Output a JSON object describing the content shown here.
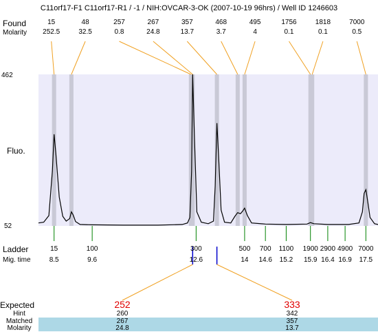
{
  "header": {
    "title": "C11orf17-F1  C11orf17-R1 / -1 / NIH:OVCAR-3-OK (2007-10-19 96hrs) / Well ID 1246603"
  },
  "labels": {
    "found": "Found",
    "molarity": "Molarity",
    "fluo": "Fluo.",
    "ladder": "Ladder",
    "mig_time": "Mig. time",
    "expected": "Expected",
    "hint": "Hint",
    "matched": "Matched",
    "molarity_bottom": "Molarity",
    "ymax": "462",
    "ymin": "52"
  },
  "chart_data": {
    "type": "line",
    "title": "C11orf17-F1  C11orf17-R1 / -1 / NIH:OVCAR-3-OK (2007-10-19 96hrs) / Well ID 1246603",
    "ylabel": "Fluo.",
    "ylim": [
      52,
      462
    ],
    "found_peaks": [
      {
        "size": "15",
        "molarity": "252.5",
        "time": 8.5
      },
      {
        "size": "48",
        "molarity": "32.5",
        "time": 9.0
      },
      {
        "size": "257",
        "molarity": "0.8",
        "time": 12.45
      },
      {
        "size": "267",
        "molarity": "24.8",
        "time": 12.5
      },
      {
        "size": "357",
        "molarity": "13.7",
        "time": 13.2
      },
      {
        "size": "468",
        "molarity": "3.7",
        "time": 13.8
      },
      {
        "size": "495",
        "molarity": "4",
        "time": 14.0
      },
      {
        "size": "1756",
        "molarity": "0.1",
        "time": 15.9
      },
      {
        "size": "1818",
        "molarity": "0.1",
        "time": 15.95
      },
      {
        "size": "7000",
        "molarity": "0.5",
        "time": 17.5
      }
    ],
    "ladder": [
      {
        "size": "15",
        "time": "8.5"
      },
      {
        "size": "100",
        "time": "9.6"
      },
      {
        "size": "300",
        "time": "12.6"
      },
      {
        "size": "500",
        "time": "14"
      },
      {
        "size": "700",
        "time": "14.6"
      },
      {
        "size": "1100",
        "time": "15.2"
      },
      {
        "size": "1900",
        "time": "15.9"
      },
      {
        "size": "2900",
        "time": "16.4"
      },
      {
        "size": "4900",
        "time": "16.9"
      },
      {
        "size": "7000",
        "time": "17.5"
      }
    ],
    "expected": [
      {
        "expected": "252",
        "hint": "260",
        "matched": "267",
        "molarity": "24.8",
        "time": 12.5
      },
      {
        "expected": "333",
        "hint": "342",
        "matched": "357",
        "molarity": "13.7",
        "time": 13.2
      }
    ],
    "trace": [
      [
        8.05,
        60
      ],
      [
        8.2,
        62
      ],
      [
        8.35,
        80
      ],
      [
        8.45,
        200
      ],
      [
        8.5,
        300
      ],
      [
        8.55,
        250
      ],
      [
        8.65,
        130
      ],
      [
        8.75,
        78
      ],
      [
        8.85,
        65
      ],
      [
        8.95,
        72
      ],
      [
        9.0,
        90
      ],
      [
        9.05,
        82
      ],
      [
        9.12,
        64
      ],
      [
        9.25,
        56
      ],
      [
        9.6,
        55
      ],
      [
        10.5,
        54
      ],
      [
        11.5,
        54
      ],
      [
        12.2,
        56
      ],
      [
        12.35,
        60
      ],
      [
        12.42,
        75
      ],
      [
        12.47,
        200
      ],
      [
        12.5,
        462
      ],
      [
        12.55,
        300
      ],
      [
        12.62,
        90
      ],
      [
        12.75,
        62
      ],
      [
        12.95,
        58
      ],
      [
        13.1,
        65
      ],
      [
        13.15,
        160
      ],
      [
        13.2,
        330
      ],
      [
        13.25,
        240
      ],
      [
        13.32,
        95
      ],
      [
        13.42,
        62
      ],
      [
        13.6,
        60
      ],
      [
        13.72,
        78
      ],
      [
        13.8,
        88
      ],
      [
        13.88,
        85
      ],
      [
        13.95,
        93
      ],
      [
        14.0,
        100
      ],
      [
        14.08,
        80
      ],
      [
        14.2,
        60
      ],
      [
        14.6,
        57
      ],
      [
        15.2,
        56
      ],
      [
        15.8,
        57
      ],
      [
        15.9,
        61
      ],
      [
        16.0,
        58
      ],
      [
        16.4,
        56
      ],
      [
        17.0,
        56
      ],
      [
        17.3,
        60
      ],
      [
        17.4,
        90
      ],
      [
        17.45,
        140
      ],
      [
        17.5,
        150
      ],
      [
        17.55,
        120
      ],
      [
        17.62,
        75
      ],
      [
        17.75,
        58
      ],
      [
        17.85,
        56
      ]
    ]
  }
}
